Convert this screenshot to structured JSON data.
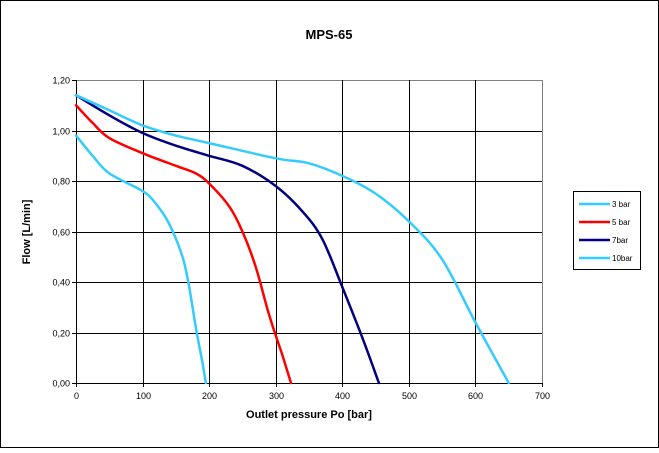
{
  "chart_data": {
    "type": "line",
    "title": "MPS-65",
    "xlabel": "Outlet pressure Po [bar]",
    "ylabel": "Flow [L/min]",
    "xlim": [
      0,
      700
    ],
    "ylim": [
      0,
      1.2
    ],
    "x_ticks": [
      "0",
      "100",
      "200",
      "300",
      "400",
      "500",
      "600",
      "700"
    ],
    "y_ticks": [
      "0,00",
      "0,20",
      "0,40",
      "0,60",
      "0,80",
      "1,00",
      "1,20"
    ],
    "grid": true,
    "legend_position": "right",
    "series": [
      {
        "name": "3 bar",
        "color": "#33ccff",
        "points": [
          [
            0,
            0.98
          ],
          [
            25,
            0.9
          ],
          [
            50,
            0.83
          ],
          [
            100,
            0.76
          ],
          [
            120,
            0.71
          ],
          [
            140,
            0.63
          ],
          [
            160,
            0.5
          ],
          [
            170,
            0.38
          ],
          [
            180,
            0.22
          ],
          [
            190,
            0.08
          ],
          [
            195,
            0.0
          ]
        ]
      },
      {
        "name": "5 bar",
        "color": "#ff0000",
        "points": [
          [
            0,
            1.1
          ],
          [
            25,
            1.03
          ],
          [
            50,
            0.97
          ],
          [
            100,
            0.91
          ],
          [
            150,
            0.86
          ],
          [
            180,
            0.83
          ],
          [
            200,
            0.79
          ],
          [
            230,
            0.7
          ],
          [
            250,
            0.6
          ],
          [
            270,
            0.46
          ],
          [
            290,
            0.27
          ],
          [
            310,
            0.11
          ],
          [
            323,
            0.0
          ]
        ]
      },
      {
        "name": "7bar",
        "color": "#000080",
        "points": [
          [
            0,
            1.14
          ],
          [
            50,
            1.06
          ],
          [
            100,
            0.99
          ],
          [
            150,
            0.94
          ],
          [
            200,
            0.9
          ],
          [
            250,
            0.86
          ],
          [
            300,
            0.78
          ],
          [
            340,
            0.68
          ],
          [
            370,
            0.57
          ],
          [
            400,
            0.38
          ],
          [
            430,
            0.18
          ],
          [
            455,
            0.0
          ]
        ]
      },
      {
        "name": "10bar",
        "color": "#33ccff",
        "points": [
          [
            0,
            1.14
          ],
          [
            50,
            1.08
          ],
          [
            100,
            1.02
          ],
          [
            150,
            0.98
          ],
          [
            200,
            0.95
          ],
          [
            300,
            0.89
          ],
          [
            350,
            0.87
          ],
          [
            400,
            0.82
          ],
          [
            450,
            0.75
          ],
          [
            500,
            0.64
          ],
          [
            550,
            0.49
          ],
          [
            600,
            0.24
          ],
          [
            650,
            0.0
          ]
        ]
      }
    ]
  }
}
